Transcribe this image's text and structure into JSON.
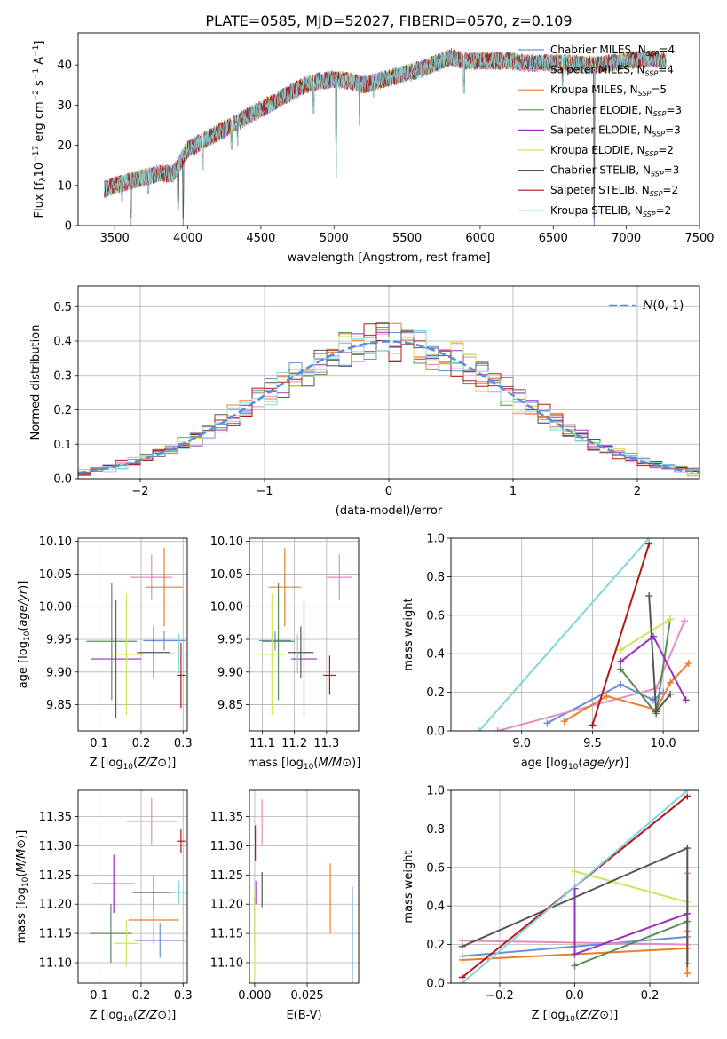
{
  "figure": {
    "title": "PLATE=0585, MJD=52027, FIBERID=0570, z=0.109"
  },
  "colors": {
    "chabrier_miles": "#6a8fd6",
    "salpeter_miles": "#e48cc0",
    "kroupa_miles": "#e87f2b",
    "chabrier_elodie": "#5a8a5a",
    "salpeter_elodie": "#9b30b8",
    "kroupa_elodie": "#cde65a",
    "chabrier_stelib": "#555555",
    "salpeter_stelib": "#b01818",
    "kroupa_stelib": "#7fd5dc"
  },
  "chart_data": [
    {
      "id": "spectrum",
      "type": "line",
      "xlabel": "wavelength [Angstrom, rest frame]",
      "ylabel_parts": [
        "Flux [f",
        "λ",
        "10",
        "−17",
        " erg cm",
        "−2",
        " s",
        "−1",
        " A",
        "−1",
        "]"
      ],
      "xlim": [
        3250,
        7500
      ],
      "ylim": [
        0,
        48
      ],
      "xticks": [
        3500,
        4000,
        4500,
        5000,
        5500,
        6000,
        6500,
        7000,
        7500
      ],
      "yticks": [
        0,
        10,
        20,
        30,
        40
      ],
      "legend_position": "top-right",
      "legend": [
        {
          "base": "Chabrier MILES, N",
          "sub": "SSP",
          "tail": "=4",
          "color_key": "chabrier_miles"
        },
        {
          "base": "Salpeter MILES, N",
          "sub": "SSP",
          "tail": "=4",
          "color_key": "salpeter_miles"
        },
        {
          "base": "Kroupa MILES, N",
          "sub": "SSP",
          "tail": "=5",
          "color_key": "kroupa_miles"
        },
        {
          "base": "Chabrier ELODIE, N",
          "sub": "SSP",
          "tail": "=3",
          "color_key": "chabrier_elodie"
        },
        {
          "base": "Salpeter ELODIE, N",
          "sub": "SSP",
          "tail": "=3",
          "color_key": "salpeter_elodie"
        },
        {
          "base": "Kroupa ELODIE, N",
          "sub": "SSP",
          "tail": "=2",
          "color_key": "kroupa_elodie"
        },
        {
          "base": "Chabrier STELIB, N",
          "sub": "SSP",
          "tail": "=3",
          "color_key": "chabrier_stelib"
        },
        {
          "base": "Salpeter STELIB, N",
          "sub": "SSP",
          "tail": "=2",
          "color_key": "salpeter_stelib"
        },
        {
          "base": "Kroupa STELIB, N",
          "sub": "SSP",
          "tail": "=2",
          "color_key": "kroupa_stelib"
        }
      ],
      "continuum_x": [
        3430,
        3500,
        3600,
        3700,
        3800,
        3900,
        3950,
        4000,
        4100,
        4200,
        4300,
        4400,
        4500,
        4600,
        4700,
        4800,
        4900,
        5000,
        5100,
        5200,
        5300,
        5400,
        5500,
        5600,
        5700,
        5800,
        5900,
        6000,
        6100,
        6200,
        6300,
        6400,
        6500,
        6600,
        6700,
        6800,
        6900,
        7000,
        7100,
        7200,
        7270
      ],
      "continuum_y": [
        9,
        10,
        11,
        12,
        13,
        13,
        16,
        19,
        21,
        23,
        25,
        27,
        29,
        31,
        33,
        35,
        36,
        36.5,
        36,
        35,
        36,
        37,
        38,
        39,
        40.5,
        42,
        41,
        41,
        41,
        41,
        40.5,
        40.5,
        40.5,
        40.5,
        40,
        40,
        40.5,
        41,
        41.5,
        41.5,
        41
      ],
      "absorption_features": [
        {
          "x": 3550,
          "y": 6
        },
        {
          "x": 3610,
          "y": 0
        },
        {
          "x": 3730,
          "y": 8
        },
        {
          "x": 3934,
          "y": 4
        },
        {
          "x": 3969,
          "y": 0
        },
        {
          "x": 4102,
          "y": 14
        },
        {
          "x": 4300,
          "y": 19
        },
        {
          "x": 4340,
          "y": 20
        },
        {
          "x": 4861,
          "y": 28
        },
        {
          "x": 5015,
          "y": 12
        },
        {
          "x": 5175,
          "y": 25
        },
        {
          "x": 5270,
          "y": 32
        },
        {
          "x": 5890,
          "y": 33
        },
        {
          "x": 6563,
          "y": 33
        },
        {
          "x": 6780,
          "y": 0
        }
      ]
    },
    {
      "id": "residuals",
      "type": "histogram",
      "xlabel": "(data-model)/error",
      "ylabel": "Normed distribution",
      "xlim": [
        -2.5,
        2.5
      ],
      "ylim": [
        0,
        0.56
      ],
      "xticks": [
        -2,
        -1,
        0,
        1,
        2
      ],
      "yticks": [
        0,
        0.1,
        0.2,
        0.3,
        0.4,
        0.5
      ],
      "bin_width": 0.1,
      "legend_position": "top-right",
      "reference": {
        "label_script": "N",
        "label_tail": "(0, 1)",
        "mean": 0,
        "sigma": 1,
        "color": "#5b8dd9"
      },
      "series_color_keys": [
        "chabrier_miles",
        "salpeter_miles",
        "kroupa_miles",
        "chabrier_elodie",
        "salpeter_elodie",
        "kroupa_elodie",
        "chabrier_stelib",
        "salpeter_stelib",
        "kroupa_stelib"
      ]
    },
    {
      "id": "age_vs_Z",
      "type": "scatter",
      "xlabel": "Z [log10(Z/Z⊙)]",
      "ylabel": "age  [log10(age/yr)]",
      "xlim": [
        0.05,
        0.31
      ],
      "ylim": [
        9.81,
        10.105
      ],
      "xticks": [
        0.1,
        0.2,
        0.3
      ],
      "yticks": [
        9.85,
        9.9,
        9.95,
        10.0,
        10.05,
        10.1
      ],
      "points": [
        {
          "color_key": "chabrier_miles",
          "x": 0.255,
          "y": 9.948,
          "xerr": 0.05,
          "yerr": 0.015
        },
        {
          "color_key": "salpeter_miles",
          "x": 0.225,
          "y": 10.045,
          "xerr": 0.05,
          "yerr": 0.035
        },
        {
          "color_key": "kroupa_miles",
          "x": 0.255,
          "y": 10.03,
          "xerr": 0.045,
          "yerr": 0.06
        },
        {
          "color_key": "chabrier_elodie",
          "x": 0.13,
          "y": 9.947,
          "xerr": 0.06,
          "yerr": 0.09
        },
        {
          "color_key": "salpeter_elodie",
          "x": 0.14,
          "y": 9.92,
          "xerr": 0.06,
          "yerr": 0.09
        },
        {
          "color_key": "kroupa_elodie",
          "x": 0.165,
          "y": 9.927,
          "xerr": 0.04,
          "yerr": 0.093
        },
        {
          "color_key": "chabrier_stelib",
          "x": 0.23,
          "y": 9.93,
          "xerr": 0.04,
          "yerr": 0.04
        },
        {
          "color_key": "salpeter_stelib",
          "x": 0.295,
          "y": 9.895,
          "xerr": 0.01,
          "yerr": 0.05
        },
        {
          "color_key": "kroupa_stelib",
          "x": 0.29,
          "y": 9.928,
          "xerr": 0.02,
          "yerr": 0.03
        }
      ]
    },
    {
      "id": "age_vs_mass",
      "type": "scatter",
      "xlabel": "mass [log10(M/M⊙)]",
      "ylabel": "",
      "xlim": [
        11.06,
        11.4
      ],
      "ylim": [
        9.81,
        10.105
      ],
      "xticks": [
        11.1,
        11.2,
        11.3
      ],
      "yticks": [
        9.85,
        9.9,
        9.95,
        10.0,
        10.05,
        10.1
      ],
      "points": [
        {
          "color_key": "chabrier_miles",
          "x": 11.14,
          "y": 9.948,
          "xerr": 0.05,
          "yerr": 0.015
        },
        {
          "color_key": "salpeter_miles",
          "x": 11.34,
          "y": 10.045,
          "xerr": 0.04,
          "yerr": 0.035
        },
        {
          "color_key": "kroupa_miles",
          "x": 11.17,
          "y": 10.03,
          "xerr": 0.05,
          "yerr": 0.06
        },
        {
          "color_key": "chabrier_elodie",
          "x": 11.15,
          "y": 9.947,
          "xerr": 0.05,
          "yerr": 0.09
        },
        {
          "color_key": "salpeter_elodie",
          "x": 11.23,
          "y": 9.92,
          "xerr": 0.04,
          "yerr": 0.09
        },
        {
          "color_key": "kroupa_elodie",
          "x": 11.13,
          "y": 9.927,
          "xerr": 0.04,
          "yerr": 0.093
        },
        {
          "color_key": "chabrier_stelib",
          "x": 11.22,
          "y": 9.93,
          "xerr": 0.04,
          "yerr": 0.04
        },
        {
          "color_key": "salpeter_stelib",
          "x": 11.31,
          "y": 9.895,
          "xerr": 0.02,
          "yerr": 0.03
        },
        {
          "color_key": "kroupa_stelib",
          "x": 11.21,
          "y": 9.928,
          "xerr": 0.01,
          "yerr": 0.03
        }
      ]
    },
    {
      "id": "weight_vs_age",
      "type": "line",
      "xlabel": "age  [log10(age/yr)]",
      "ylabel": "mass weight",
      "xlim": [
        8.5,
        10.25
      ],
      "ylim": [
        0,
        1
      ],
      "xticks": [
        9.0,
        9.5,
        10.0
      ],
      "yticks": [
        0.0,
        0.2,
        0.4,
        0.6,
        0.8,
        1.0
      ],
      "series": [
        {
          "color_key": "chabrier_miles",
          "x": [
            9.18,
            9.7,
            9.93,
            10.0
          ],
          "y": [
            0.04,
            0.24,
            0.16,
            0.2
          ]
        },
        {
          "color_key": "salpeter_miles",
          "x": [
            8.83,
            9.95,
            10.15
          ],
          "y": [
            0.0,
            0.22,
            0.57
          ]
        },
        {
          "color_key": "kroupa_miles",
          "x": [
            9.3,
            9.6,
            9.95,
            10.05,
            10.18
          ],
          "y": [
            0.05,
            0.18,
            0.11,
            0.25,
            0.35
          ]
        },
        {
          "color_key": "chabrier_elodie",
          "x": [
            9.7,
            9.95,
            10.05
          ],
          "y": [
            0.32,
            0.09,
            0.58
          ]
        },
        {
          "color_key": "salpeter_elodie",
          "x": [
            9.7,
            9.93,
            10.16
          ],
          "y": [
            0.36,
            0.49,
            0.16
          ]
        },
        {
          "color_key": "kroupa_elodie",
          "x": [
            9.7,
            10.05
          ],
          "y": [
            0.42,
            0.58
          ]
        },
        {
          "color_key": "chabrier_stelib",
          "x": [
            9.9,
            9.95,
            10.05
          ],
          "y": [
            0.7,
            0.1,
            0.19
          ]
        },
        {
          "color_key": "salpeter_stelib",
          "x": [
            9.5,
            9.9
          ],
          "y": [
            0.03,
            0.97
          ]
        },
        {
          "color_key": "kroupa_stelib",
          "x": [
            8.7,
            9.9
          ],
          "y": [
            0.0,
            1.0
          ]
        }
      ]
    },
    {
      "id": "mass_vs_Z",
      "type": "scatter",
      "xlabel": "Z [log10(Z/Z⊙)]",
      "ylabel": "mass [log10(M/M⊙)]",
      "xlim": [
        0.05,
        0.31
      ],
      "ylim": [
        11.065,
        11.395
      ],
      "xticks": [
        0.1,
        0.2,
        0.3
      ],
      "yticks": [
        11.1,
        11.15,
        11.2,
        11.25,
        11.3,
        11.35
      ],
      "points": [
        {
          "color_key": "chabrier_miles",
          "x": 0.245,
          "y": 11.138,
          "xerr": 0.06,
          "yerr": 0.03
        },
        {
          "color_key": "salpeter_miles",
          "x": 0.225,
          "y": 11.342,
          "xerr": 0.06,
          "yerr": 0.04
        },
        {
          "color_key": "kroupa_miles",
          "x": 0.23,
          "y": 11.173,
          "xerr": 0.06,
          "yerr": 0.04
        },
        {
          "color_key": "chabrier_elodie",
          "x": 0.128,
          "y": 11.15,
          "xerr": 0.05,
          "yerr": 0.05
        },
        {
          "color_key": "salpeter_elodie",
          "x": 0.135,
          "y": 11.235,
          "xerr": 0.05,
          "yerr": 0.05
        },
        {
          "color_key": "kroupa_elodie",
          "x": 0.165,
          "y": 11.133,
          "xerr": 0.03,
          "yerr": 0.04
        },
        {
          "color_key": "chabrier_stelib",
          "x": 0.23,
          "y": 11.22,
          "xerr": 0.05,
          "yerr": 0.03
        },
        {
          "color_key": "salpeter_stelib",
          "x": 0.295,
          "y": 11.308,
          "xerr": 0.01,
          "yerr": 0.02
        },
        {
          "color_key": "kroupa_stelib",
          "x": 0.29,
          "y": 11.22,
          "xerr": 0.02,
          "yerr": 0.02
        }
      ]
    },
    {
      "id": "mass_vs_EBV",
      "type": "scatter",
      "xlabel": "E(B-V)",
      "ylabel": "",
      "xlim": [
        -0.0025,
        0.0495
      ],
      "ylim": [
        11.065,
        11.395
      ],
      "xticks": [
        0.0,
        0.025
      ],
      "xtick_labels": [
        "0.000",
        "0.025"
      ],
      "yticks": [
        11.1,
        11.15,
        11.2,
        11.25,
        11.3,
        11.35
      ],
      "points": [
        {
          "color_key": "chabrier_miles",
          "x": 0.0465,
          "y": 11.14,
          "xerr": 0,
          "yerr": 0.09
        },
        {
          "color_key": "salpeter_miles",
          "x": 0.0035,
          "y": 11.34,
          "xerr": 0,
          "yerr": 0.04
        },
        {
          "color_key": "kroupa_miles",
          "x": 0.036,
          "y": 11.21,
          "xerr": 0,
          "yerr": 0.06
        },
        {
          "color_key": "chabrier_elodie",
          "x": 0.0,
          "y": 11.17,
          "xerr": 0,
          "yerr": 0.04
        },
        {
          "color_key": "salpeter_elodie",
          "x": 0.0005,
          "y": 11.22,
          "xerr": 0,
          "yerr": 0.02
        },
        {
          "color_key": "kroupa_elodie",
          "x": 0.0,
          "y": 11.15,
          "xerr": 0,
          "yerr": 0.08
        },
        {
          "color_key": "chabrier_stelib",
          "x": 0.0035,
          "y": 11.225,
          "xerr": 0,
          "yerr": 0.03
        },
        {
          "color_key": "salpeter_stelib",
          "x": 0.0003,
          "y": 11.305,
          "xerr": 0,
          "yerr": 0.03
        },
        {
          "color_key": "kroupa_stelib",
          "x": 0.0002,
          "y": 11.22,
          "xerr": 0,
          "yerr": 0.02
        }
      ]
    },
    {
      "id": "weight_vs_Z",
      "type": "line",
      "xlabel": "Z [log10(Z/Z⊙)]",
      "ylabel": "mass weight",
      "xlim": [
        -0.33,
        0.33
      ],
      "ylim": [
        0,
        1
      ],
      "xticks": [
        -0.2,
        0.0,
        0.2
      ],
      "yticks": [
        0.0,
        0.2,
        0.4,
        0.6,
        0.8,
        1.0
      ],
      "series": [
        {
          "color_key": "chabrier_miles",
          "x": [
            -0.3,
            0.0,
            0.3
          ],
          "y": [
            0.14,
            0.19,
            0.24
          ]
        },
        {
          "color_key": "salpeter_miles",
          "x": [
            -0.3,
            0.3,
            0.3
          ],
          "y": [
            0.22,
            0.2,
            0.57
          ]
        },
        {
          "color_key": "kroupa_miles",
          "x": [
            -0.3,
            0.3,
            0.3,
            0.3
          ],
          "y": [
            0.12,
            0.18,
            0.05,
            0.27
          ]
        },
        {
          "color_key": "chabrier_elodie",
          "x": [
            0.0,
            0.3
          ],
          "y": [
            0.09,
            0.32
          ]
        },
        {
          "color_key": "salpeter_elodie",
          "x": [
            0.0,
            0.0,
            0.3
          ],
          "y": [
            0.49,
            0.15,
            0.36
          ]
        },
        {
          "color_key": "kroupa_elodie",
          "x": [
            0.0,
            0.3
          ],
          "y": [
            0.58,
            0.42
          ]
        },
        {
          "color_key": "chabrier_stelib",
          "x": [
            -0.3,
            0.3,
            0.3
          ],
          "y": [
            0.19,
            0.7,
            0.1
          ]
        },
        {
          "color_key": "salpeter_stelib",
          "x": [
            -0.3,
            0.3
          ],
          "y": [
            0.03,
            0.97
          ]
        },
        {
          "color_key": "kroupa_stelib",
          "x": [
            -0.3,
            0.3
          ],
          "y": [
            0.0,
            1.0
          ]
        }
      ]
    }
  ]
}
